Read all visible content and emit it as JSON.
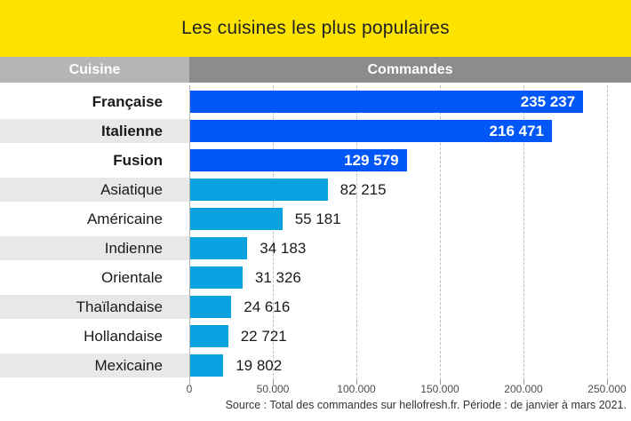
{
  "title": "Les cuisines les plus populaires",
  "columns": {
    "cuisine": "Cuisine",
    "commandes": "Commandes"
  },
  "source": "Source : Total des commandes sur hellofresh.fr. Période : de janvier à mars 2021.",
  "chart_data": {
    "type": "bar",
    "orientation": "horizontal",
    "title": "Les cuisines les plus populaires",
    "categories": [
      "Française",
      "Italienne",
      "Fusion",
      "Asiatique",
      "Américaine",
      "Indienne",
      "Orientale",
      "Thaïlandaise",
      "Hollandaise",
      "Mexicaine"
    ],
    "values": [
      235237,
      216471,
      129579,
      82215,
      55181,
      34183,
      31326,
      24616,
      22721,
      19802
    ],
    "value_labels": [
      "235 237",
      "216 471",
      "129 579",
      "82 215",
      "55 181",
      "34 183",
      "31 326",
      "24 616",
      "22 721",
      "19 802"
    ],
    "x_tick_labels": [
      "0",
      "50.000",
      "100.000",
      "150.000",
      "200.000",
      "250.000"
    ],
    "xlim": [
      0,
      250000
    ],
    "grid": "vertical-dashed",
    "legend": "none",
    "highlight_count": 3,
    "colors": {
      "highlight": "#0057F8",
      "base": "#09A2E0",
      "banner": "#FCE300",
      "header_left": "#B5B5B5",
      "header_right": "#8C8C8C",
      "stripe": "#E8E8E8"
    }
  }
}
